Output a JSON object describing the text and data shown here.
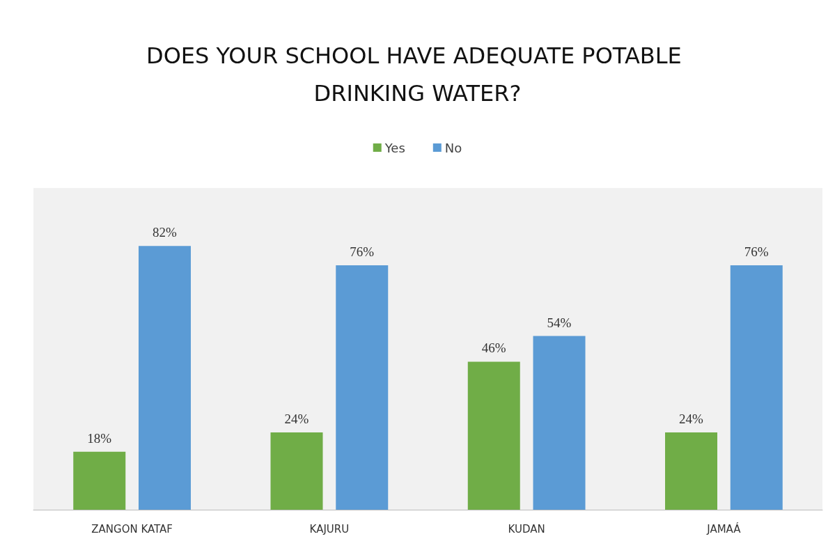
{
  "chart_data": {
    "type": "bar",
    "title": "DOES YOUR SCHOOL HAVE ADEQUATE POTABLE DRINKING WATER?",
    "categories": [
      "ZANGON KATAF",
      "KAJURU",
      "KUDAN",
      "JAMAÁ"
    ],
    "series": [
      {
        "name": "Yes",
        "color": "#70ad47",
        "values": [
          18,
          24,
          46,
          24
        ],
        "value_labels": [
          "18%",
          "24%",
          "46%",
          "24%"
        ]
      },
      {
        "name": "No",
        "color": "#5b9bd5",
        "values": [
          82,
          76,
          54,
          76
        ],
        "value_labels": [
          "82%",
          "76%",
          "54%",
          "76%"
        ]
      }
    ],
    "legend": "top"
  }
}
